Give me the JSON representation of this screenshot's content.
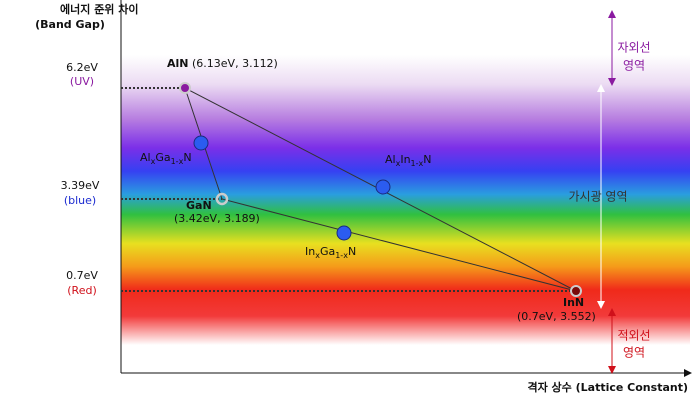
{
  "axis": {
    "y_title": "에너지 준위 차이",
    "y_subtitle": "(Band Gap)",
    "x_title": "격자 상수 (Lattice Constant)"
  },
  "levels": [
    {
      "value": "6.2eV",
      "name": "(UV)"
    },
    {
      "value": "3.39eV",
      "name": "(blue)"
    },
    {
      "value": "0.7eV",
      "name": "(Red)"
    }
  ],
  "points": [
    {
      "name": "AlN",
      "coords": "(6.13eV, 3.112)"
    },
    {
      "name": "GaN",
      "coords": "(3.42eV, 3.189)"
    },
    {
      "name": "InN",
      "coords": "(0.7eV, 3.552)"
    }
  ],
  "alloys": [
    [
      "Al",
      "x",
      "Ga",
      "1-x",
      "N"
    ],
    [
      "Al",
      "x",
      "In",
      "1-x",
      "N"
    ],
    [
      "In",
      "x",
      "Ga",
      "1-x",
      "N"
    ]
  ],
  "regions": {
    "uv": [
      "자외선",
      "영역"
    ],
    "visible": "가시광 영역",
    "ir": [
      "적외선",
      "영역"
    ]
  }
}
